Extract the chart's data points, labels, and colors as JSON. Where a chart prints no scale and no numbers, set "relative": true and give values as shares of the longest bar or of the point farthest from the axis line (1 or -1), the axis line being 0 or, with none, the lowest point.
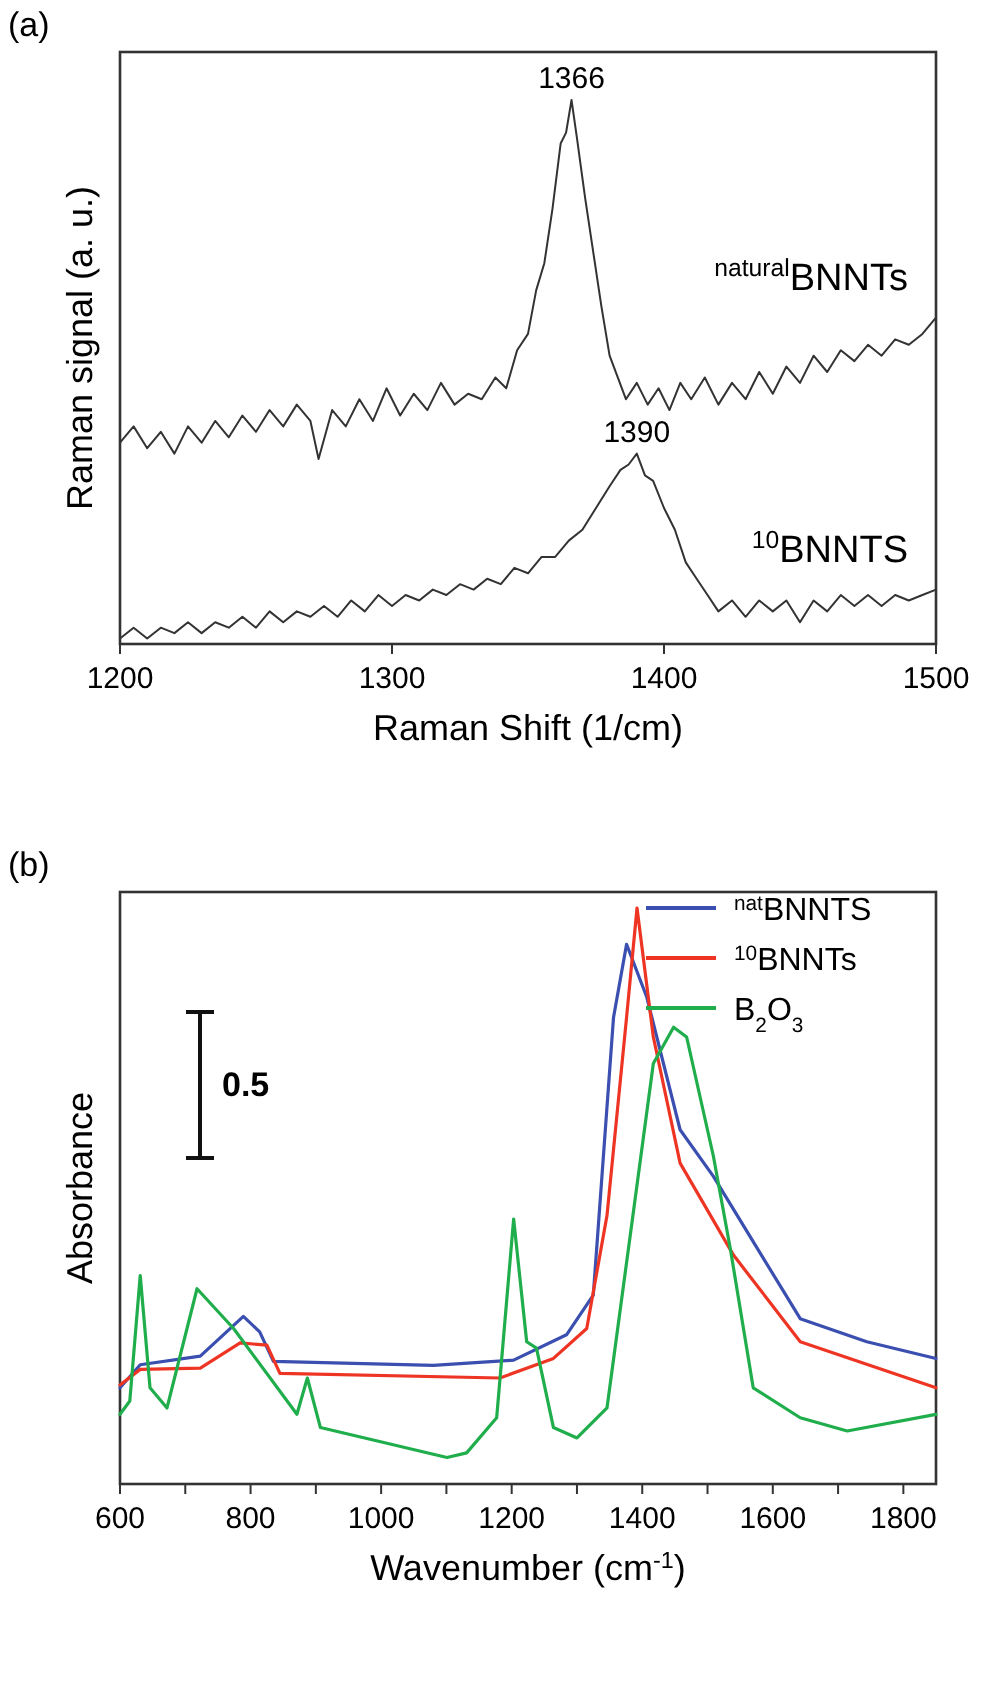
{
  "chart_data": [
    {
      "type": "line",
      "title": "(a)",
      "xlabel": "Raman Shift (1/cm)",
      "ylabel": "Raman signal (a. u.)",
      "relative": true,
      "xlim": [
        1200,
        1500
      ],
      "xticks": [
        1200,
        1300,
        1400,
        1500
      ],
      "series": [
        {
          "name": "$^{natural}$BNNTs",
          "color": "#333333",
          "x": [
            1200,
            1205,
            1210,
            1215,
            1220,
            1225,
            1230,
            1235,
            1240,
            1245,
            1250,
            1255,
            1260,
            1265,
            1270,
            1273,
            1278,
            1283,
            1288,
            1293,
            1298,
            1303,
            1308,
            1313,
            1318,
            1323,
            1328,
            1333,
            1338,
            1342,
            1346,
            1350,
            1353,
            1356,
            1359,
            1362,
            1364,
            1366,
            1368,
            1371,
            1374,
            1377,
            1380,
            1383,
            1386,
            1390,
            1394,
            1398,
            1402,
            1406,
            1410,
            1415,
            1420,
            1425,
            1430,
            1435,
            1440,
            1445,
            1450,
            1455,
            1460,
            1465,
            1470,
            1475,
            1480,
            1485,
            1490,
            1495,
            1500
          ],
          "values": [
            0.37,
            0.4,
            0.36,
            0.39,
            0.35,
            0.4,
            0.37,
            0.41,
            0.38,
            0.42,
            0.39,
            0.43,
            0.4,
            0.44,
            0.41,
            0.34,
            0.43,
            0.4,
            0.45,
            0.41,
            0.47,
            0.42,
            0.46,
            0.43,
            0.48,
            0.44,
            0.46,
            0.45,
            0.49,
            0.47,
            0.54,
            0.57,
            0.65,
            0.7,
            0.8,
            0.92,
            0.94,
            1.0,
            0.93,
            0.82,
            0.72,
            0.62,
            0.53,
            0.49,
            0.45,
            0.48,
            0.44,
            0.47,
            0.43,
            0.48,
            0.45,
            0.49,
            0.44,
            0.48,
            0.45,
            0.5,
            0.46,
            0.51,
            0.48,
            0.53,
            0.5,
            0.54,
            0.52,
            0.55,
            0.53,
            0.56,
            0.55,
            0.57,
            0.6
          ]
        },
        {
          "name": "$^{10}$BNNTS",
          "color": "#333333",
          "x": [
            1200,
            1205,
            1210,
            1215,
            1220,
            1225,
            1230,
            1235,
            1240,
            1245,
            1250,
            1255,
            1260,
            1265,
            1270,
            1275,
            1280,
            1285,
            1290,
            1295,
            1300,
            1305,
            1310,
            1315,
            1320,
            1325,
            1330,
            1335,
            1340,
            1345,
            1350,
            1355,
            1360,
            1365,
            1370,
            1375,
            1380,
            1384,
            1387,
            1390,
            1393,
            1396,
            1400,
            1404,
            1408,
            1412,
            1416,
            1420,
            1425,
            1430,
            1435,
            1440,
            1445,
            1450,
            1455,
            1460,
            1465,
            1470,
            1475,
            1480,
            1485,
            1490,
            1495,
            1500
          ],
          "values": [
            0.01,
            0.03,
            0.01,
            0.03,
            0.02,
            0.04,
            0.02,
            0.04,
            0.03,
            0.05,
            0.03,
            0.06,
            0.04,
            0.06,
            0.05,
            0.07,
            0.05,
            0.08,
            0.06,
            0.09,
            0.07,
            0.09,
            0.08,
            0.1,
            0.09,
            0.11,
            0.1,
            0.12,
            0.11,
            0.14,
            0.13,
            0.16,
            0.16,
            0.19,
            0.21,
            0.25,
            0.29,
            0.32,
            0.33,
            0.35,
            0.31,
            0.3,
            0.25,
            0.21,
            0.15,
            0.12,
            0.09,
            0.06,
            0.08,
            0.05,
            0.08,
            0.06,
            0.08,
            0.04,
            0.08,
            0.06,
            0.09,
            0.07,
            0.09,
            0.07,
            0.09,
            0.08,
            0.09,
            0.1
          ]
        }
      ],
      "annotations": [
        {
          "text": "1366",
          "x": 1366,
          "y": 1.0
        },
        {
          "text": "1390",
          "x": 1390,
          "y": 0.35
        }
      ]
    },
    {
      "type": "line",
      "title": "(b)",
      "xlabel": "Wavenumber (cm$^{-1}$)",
      "ylabel": "Absorbance",
      "relative": true,
      "xlim": [
        600,
        1850
      ],
      "xticks": [
        600,
        {
          "value": 700,
          "label": null
        },
        800,
        {
          "value": 900,
          "label": null
        },
        1000,
        {
          "value": 1100,
          "label": null
        },
        1200,
        {
          "value": 1300,
          "label": null
        },
        1400,
        {
          "value": 1500,
          "label": null
        },
        1600,
        {
          "value": 1700,
          "label": null
        },
        1800
      ],
      "legend": "top right",
      "series": [
        {
          "name": "$^{nat}$BNNTS",
          "color": "#3a4fb0",
          "x": [
            600,
            631,
            723,
            789,
            814,
            835,
            1080,
            1203,
            1284,
            1325,
            1356,
            1376,
            1407,
            1458,
            1509,
            1642,
            1744,
            1850
          ],
          "values": [
            0.167,
            0.207,
            0.222,
            0.291,
            0.264,
            0.213,
            0.206,
            0.215,
            0.259,
            0.328,
            0.81,
            0.937,
            0.845,
            0.615,
            0.534,
            0.287,
            0.247,
            0.218
          ]
        },
        {
          "name": "$^{10}$BNNTs",
          "color": "#ee3524",
          "x": [
            600,
            631,
            723,
            784,
            825,
            845,
            1182,
            1264,
            1315,
            1346,
            1376,
            1392,
            1417,
            1458,
            1540,
            1642,
            1850
          ],
          "values": [
            0.172,
            0.199,
            0.201,
            0.245,
            0.241,
            0.192,
            0.184,
            0.218,
            0.27,
            0.466,
            0.81,
            1.0,
            0.776,
            0.557,
            0.397,
            0.247,
            0.167
          ]
        },
        {
          "name": "B$_{2}$O$_{3}$",
          "color": "#1fae4b",
          "x": [
            600,
            615,
            631,
            646,
            672,
            718,
            774,
            871,
            887,
            907,
            1101,
            1131,
            1177,
            1203,
            1223,
            1238,
            1264,
            1300,
            1346,
            1387,
            1417,
            1448,
            1468,
            1509,
            1535,
            1570,
            1642,
            1714,
            1850
          ],
          "values": [
            0.121,
            0.144,
            0.362,
            0.167,
            0.132,
            0.339,
            0.27,
            0.121,
            0.184,
            0.098,
            0.046,
            0.054,
            0.115,
            0.46,
            0.247,
            0.236,
            0.098,
            0.08,
            0.132,
            0.477,
            0.73,
            0.793,
            0.776,
            0.569,
            0.408,
            0.167,
            0.115,
            0.092,
            0.121
          ]
        }
      ],
      "annotations": [
        "0.5"
      ]
    }
  ]
}
